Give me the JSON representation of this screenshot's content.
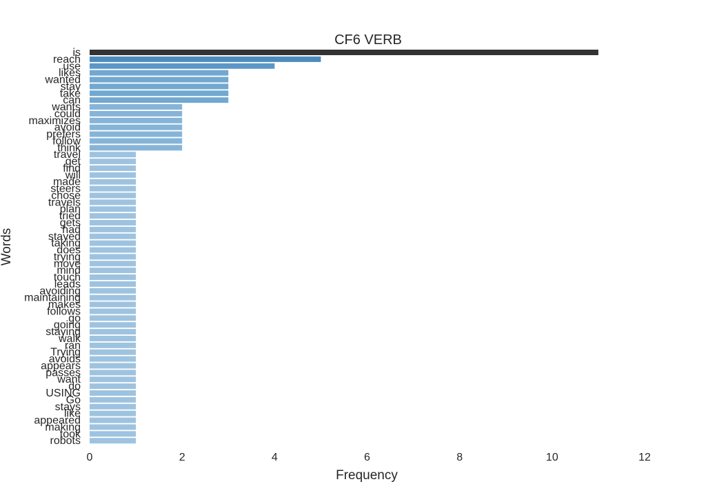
{
  "chart_data": {
    "type": "bar",
    "orientation": "horizontal",
    "title": "CF6 VERB",
    "xlabel": "Frequency",
    "ylabel": "Words",
    "xlim": [
      0,
      13.2
    ],
    "xticks": [
      0,
      2,
      4,
      6,
      8,
      10,
      12
    ],
    "grid": false,
    "legend": "none",
    "categories": [
      "is",
      "reach",
      "use",
      "likes",
      "wanted",
      "stay",
      "take",
      "can",
      "wants",
      "could",
      "maximizes",
      "avoid",
      "prefers",
      "follow",
      "think",
      "travel",
      "get",
      "find",
      "will",
      "made",
      "steers",
      "chose",
      "travels",
      "plan",
      "tried",
      "gets",
      "had",
      "stayed",
      "taking",
      "does",
      "trying",
      "move",
      "mind",
      "touch",
      "leads",
      "avoiding",
      "maintaining",
      "makes",
      "follows",
      "go",
      "going",
      "staying",
      "walk",
      "ran",
      "Trying",
      "avoids",
      "appears",
      "passes",
      "want",
      "do",
      "USING",
      "Go",
      "stays",
      "like",
      "appeared",
      "making",
      "took",
      "robots"
    ],
    "values": [
      11,
      5,
      4,
      3,
      3,
      3,
      3,
      3,
      2,
      2,
      2,
      2,
      2,
      2,
      2,
      1,
      1,
      1,
      1,
      1,
      1,
      1,
      1,
      1,
      1,
      1,
      1,
      1,
      1,
      1,
      1,
      1,
      1,
      1,
      1,
      1,
      1,
      1,
      1,
      1,
      1,
      1,
      1,
      1,
      1,
      1,
      1,
      1,
      1,
      1,
      1,
      1,
      1,
      1,
      1,
      1,
      1,
      1
    ],
    "colors": {
      "11": "#333333",
      "5": "#4e8bbd",
      "4": "#5c97c7",
      "3": "#72a8d0",
      "2": "#86b4d8",
      "1": "#9ec3e0"
    }
  }
}
